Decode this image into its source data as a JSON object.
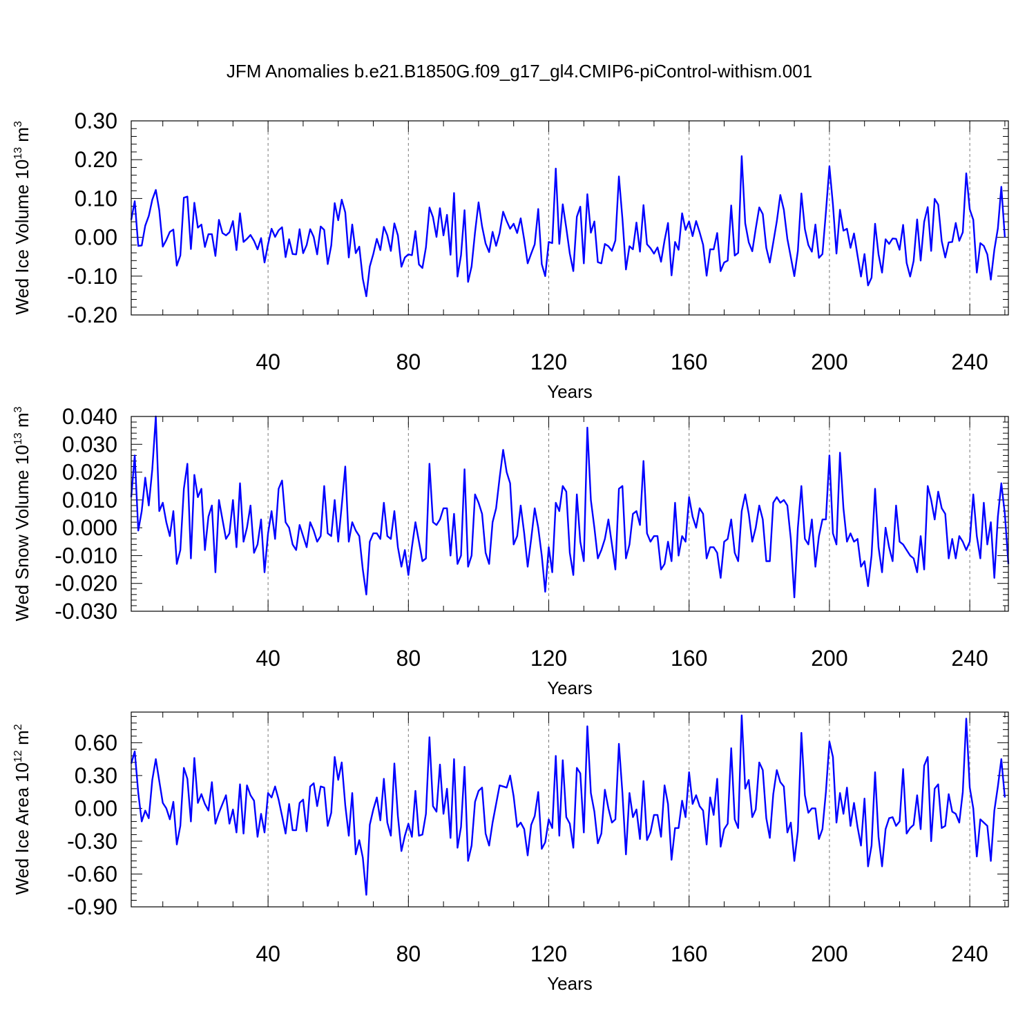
{
  "chart_data": {
    "title": "JFM Anomalies b.e21.B1850G.f09_g17_gl4.CMIP6-piControl-withism.001",
    "panels": [
      {
        "type": "line",
        "id": "ice-volume",
        "ylabel_main": "Wed Ice Volume 10",
        "ylabel_exp": "13",
        "ylabel_unit": " m",
        "ylabel_unit_exp": "3",
        "xlabel": "Years",
        "xlim": [
          1,
          251
        ],
        "ylim": [
          -0.2,
          0.3
        ],
        "yticks": [
          -0.2,
          -0.1,
          0.0,
          0.1,
          0.2,
          0.3
        ],
        "ytick_labels": [
          "-0.20",
          "-0.10",
          "0.00",
          "0.10",
          "0.20",
          "0.30"
        ],
        "xticks": [
          40,
          80,
          120,
          160,
          200,
          240
        ],
        "xtick_labels": [
          "40",
          "80",
          "120",
          "160",
          "200",
          "240"
        ],
        "grid_x": true,
        "series": [
          {
            "name": "Wed Ice Volume",
            "color": "#0000ff",
            "values": [
              0.045,
              0.093,
              -0.022,
              -0.021,
              0.03,
              0.055,
              0.097,
              0.122,
              0.07,
              -0.024,
              -0.007,
              0.014,
              0.02,
              -0.073,
              -0.047,
              0.102,
              0.105,
              -0.03,
              0.089,
              0.025,
              0.033,
              -0.025,
              0.008,
              0.008,
              -0.048,
              0.045,
              0.011,
              0.005,
              0.013,
              0.042,
              -0.033,
              0.062,
              -0.012,
              -0.004,
              0.006,
              -0.009,
              -0.031,
              -0.002,
              -0.065,
              -0.018,
              0.022,
              0.001,
              0.018,
              0.026,
              -0.051,
              -0.005,
              -0.043,
              -0.044,
              0.021,
              -0.041,
              -0.02,
              0.021,
              0.001,
              -0.044,
              0.028,
              0.019,
              -0.069,
              -0.021,
              0.088,
              0.044,
              0.097,
              0.064,
              -0.052,
              0.033,
              -0.041,
              -0.024,
              -0.107,
              -0.152,
              -0.075,
              -0.043,
              -0.004,
              -0.033,
              0.027,
              0.005,
              -0.035,
              0.036,
              0.005,
              -0.076,
              -0.052,
              -0.044,
              -0.046,
              0.016,
              -0.07,
              -0.079,
              -0.026,
              0.077,
              0.052,
              0.001,
              0.075,
              0.005,
              0.058,
              -0.045,
              0.114,
              -0.101,
              -0.046,
              0.07,
              -0.115,
              -0.075,
              0.013,
              0.09,
              0.028,
              -0.016,
              -0.038,
              0.014,
              -0.022,
              0.011,
              0.066,
              0.042,
              0.022,
              0.035,
              0.011,
              0.049,
              -0.006,
              -0.067,
              -0.042,
              -0.018,
              0.073,
              -0.069,
              -0.1,
              -0.012,
              -0.015,
              0.177,
              -0.017,
              0.085,
              0.024,
              -0.042,
              -0.087,
              0.053,
              0.079,
              -0.067,
              0.111,
              0.012,
              0.041,
              -0.064,
              -0.067,
              -0.017,
              -0.023,
              -0.035,
              -0.008,
              0.157,
              0.048,
              -0.083,
              -0.023,
              -0.031,
              0.038,
              -0.037,
              0.083,
              -0.018,
              -0.028,
              -0.042,
              -0.026,
              -0.063,
              -0.008,
              0.037,
              -0.098,
              -0.012,
              -0.032,
              0.062,
              0.019,
              0.041,
              0.003,
              0.042,
              0.013,
              -0.019,
              -0.099,
              -0.031,
              -0.031,
              0.011,
              -0.087,
              -0.065,
              -0.06,
              0.082,
              -0.047,
              -0.04,
              0.209,
              0.036,
              -0.013,
              -0.036,
              0.022,
              0.077,
              0.06,
              -0.027,
              -0.065,
              -0.013,
              0.041,
              0.109,
              0.071,
              -0.004,
              -0.051,
              -0.1,
              -0.035,
              0.113,
              0.021,
              -0.02,
              -0.037,
              0.033,
              -0.053,
              -0.043,
              0.065,
              0.183,
              0.084,
              -0.042,
              0.071,
              0.017,
              0.022,
              -0.027,
              0.01,
              -0.047,
              -0.101,
              -0.043,
              -0.124,
              -0.104,
              0.035,
              -0.044,
              -0.091,
              -0.005,
              -0.017,
              -0.003,
              -0.004,
              -0.032,
              0.032,
              -0.066,
              -0.101,
              -0.061,
              0.046,
              -0.06,
              0.04,
              0.078,
              -0.035,
              0.099,
              0.084,
              -0.01,
              -0.052,
              -0.013,
              -0.012,
              0.037,
              -0.009,
              0.013,
              0.165,
              0.072,
              0.045,
              -0.091,
              -0.015,
              -0.022,
              -0.044,
              -0.109,
              -0.032,
              0.023,
              0.13,
              0.0
            ]
          }
        ]
      },
      {
        "type": "line",
        "id": "snow-volume",
        "ylabel_main": "Wed Snow Volume 10",
        "ylabel_exp": "13",
        "ylabel_unit": " m",
        "ylabel_unit_exp": "3",
        "xlabel": "Years",
        "xlim": [
          1,
          251
        ],
        "ylim": [
          -0.03,
          0.04
        ],
        "yticks": [
          -0.03,
          -0.02,
          -0.01,
          0.0,
          0.01,
          0.02,
          0.03,
          0.04
        ],
        "ytick_labels": [
          "-0.030",
          "-0.020",
          "-0.010",
          "0.000",
          "0.010",
          "0.020",
          "0.030",
          "0.040"
        ],
        "xticks": [
          40,
          80,
          120,
          160,
          200,
          240
        ],
        "xtick_labels": [
          "40",
          "80",
          "120",
          "160",
          "200",
          "240"
        ],
        "grid_x": true,
        "series": [
          {
            "name": "Wed Snow Volume",
            "color": "#0000ff",
            "values": [
              0.011,
              0.026,
              -0.001,
              0.006,
              0.018,
              0.008,
              0.021,
              0.04,
              0.006,
              0.009,
              0.002,
              -0.003,
              0.006,
              -0.013,
              -0.008,
              0.014,
              0.023,
              -0.011,
              0.019,
              0.011,
              0.014,
              -0.008,
              0.004,
              0.008,
              -0.016,
              0.01,
              0.003,
              -0.004,
              -0.002,
              0.01,
              -0.007,
              0.016,
              -0.005,
              0.0,
              0.008,
              -0.009,
              -0.006,
              0.003,
              -0.016,
              -0.002,
              0.006,
              -0.004,
              0.014,
              0.017,
              0.002,
              0.0,
              -0.006,
              -0.008,
              0.001,
              -0.003,
              -0.007,
              0.002,
              -0.001,
              -0.005,
              -0.003,
              0.015,
              -0.002,
              -0.003,
              0.01,
              -0.005,
              0.008,
              0.022,
              -0.005,
              0.002,
              -0.001,
              -0.003,
              -0.015,
              -0.024,
              -0.005,
              -0.002,
              -0.002,
              -0.004,
              0.009,
              -0.003,
              -0.004,
              0.006,
              -0.007,
              -0.014,
              -0.008,
              -0.017,
              -0.007,
              0.002,
              -0.005,
              -0.012,
              -0.011,
              0.023,
              0.002,
              0.001,
              0.003,
              0.007,
              0.007,
              -0.01,
              0.005,
              -0.013,
              -0.01,
              0.021,
              -0.014,
              -0.01,
              0.012,
              0.009,
              0.005,
              -0.009,
              -0.013,
              0.002,
              0.007,
              0.018,
              0.028,
              0.02,
              0.016,
              -0.006,
              -0.003,
              0.008,
              -0.002,
              -0.014,
              -0.004,
              0.007,
              0.0,
              -0.01,
              -0.023,
              -0.007,
              -0.016,
              0.009,
              0.006,
              0.015,
              0.013,
              -0.009,
              -0.017,
              0.012,
              -0.005,
              -0.012,
              0.036,
              0.01,
              0.0,
              -0.011,
              -0.008,
              -0.004,
              0.003,
              -0.006,
              -0.015,
              0.014,
              0.015,
              -0.011,
              -0.006,
              0.005,
              0.006,
              0.001,
              0.024,
              -0.002,
              -0.005,
              -0.003,
              -0.003,
              -0.015,
              -0.013,
              -0.005,
              -0.012,
              0.009,
              -0.01,
              -0.003,
              -0.005,
              0.011,
              0.004,
              0.0,
              0.007,
              0.005,
              -0.011,
              -0.007,
              -0.007,
              -0.009,
              -0.018,
              -0.005,
              -0.004,
              0.003,
              -0.009,
              -0.012,
              0.006,
              0.012,
              0.005,
              -0.005,
              0.0,
              0.008,
              0.003,
              -0.012,
              -0.012,
              0.009,
              0.011,
              0.009,
              0.01,
              0.008,
              -0.004,
              -0.025,
              0.0,
              0.015,
              -0.004,
              -0.006,
              0.003,
              -0.014,
              -0.003,
              0.003,
              0.003,
              0.026,
              -0.002,
              -0.006,
              0.027,
              0.007,
              -0.005,
              -0.002,
              -0.005,
              -0.004,
              -0.014,
              -0.012,
              -0.021,
              -0.01,
              0.014,
              -0.007,
              -0.016,
              0.0,
              -0.007,
              -0.012,
              0.008,
              -0.005,
              -0.006,
              -0.008,
              -0.01,
              -0.011,
              -0.016,
              -0.003,
              -0.015,
              0.015,
              0.01,
              0.003,
              0.013,
              0.007,
              0.005,
              -0.011,
              -0.004,
              -0.011,
              -0.003,
              -0.005,
              -0.008,
              -0.005,
              0.012,
              -0.003,
              -0.011,
              0.009,
              -0.006,
              0.002,
              -0.018,
              0.004,
              0.016,
              0.005,
              -0.013
            ]
          }
        ]
      },
      {
        "type": "line",
        "id": "ice-area",
        "ylabel_main": "Wed Ice Area 10",
        "ylabel_exp": "12",
        "ylabel_unit": " m",
        "ylabel_unit_exp": "2",
        "xlabel": "Years",
        "xlim": [
          1,
          251
        ],
        "ylim": [
          -0.9,
          0.88
        ],
        "yticks": [
          -0.9,
          -0.6,
          -0.3,
          0.0,
          0.3,
          0.6
        ],
        "ytick_labels": [
          "-0.90",
          "-0.60",
          "-0.30",
          "0.00",
          "0.30",
          "0.60"
        ],
        "xticks": [
          40,
          80,
          120,
          160,
          200,
          240
        ],
        "xtick_labels": [
          "40",
          "80",
          "120",
          "160",
          "200",
          "240"
        ],
        "grid_x": true,
        "series": [
          {
            "name": "Wed Ice Area",
            "color": "#0000ff",
            "values": [
              0.41,
              0.52,
              0.14,
              -0.12,
              -0.02,
              -0.09,
              0.26,
              0.45,
              0.25,
              0.05,
              0.0,
              -0.1,
              0.06,
              -0.33,
              -0.16,
              0.37,
              0.27,
              -0.12,
              0.46,
              0.05,
              0.13,
              0.04,
              -0.02,
              0.24,
              -0.14,
              -0.04,
              0.04,
              0.12,
              -0.14,
              -0.01,
              -0.22,
              0.22,
              -0.23,
              0.21,
              0.12,
              0.07,
              -0.26,
              -0.05,
              -0.22,
              0.14,
              0.1,
              0.2,
              0.08,
              -0.07,
              -0.23,
              0.04,
              -0.2,
              -0.2,
              0.05,
              0.08,
              -0.21,
              0.2,
              0.23,
              0.02,
              0.2,
              0.19,
              -0.16,
              -0.04,
              0.47,
              0.26,
              0.42,
              0.03,
              -0.25,
              0.14,
              -0.42,
              -0.29,
              -0.45,
              -0.79,
              -0.15,
              -0.01,
              0.1,
              -0.11,
              0.27,
              -0.13,
              -0.25,
              0.41,
              -0.07,
              -0.39,
              -0.25,
              -0.14,
              -0.26,
              0.16,
              -0.25,
              -0.24,
              -0.05,
              0.65,
              0.02,
              -0.03,
              0.4,
              -0.05,
              0.18,
              -0.27,
              0.45,
              -0.36,
              -0.17,
              0.38,
              -0.48,
              -0.34,
              0.06,
              0.16,
              0.19,
              -0.23,
              -0.34,
              -0.13,
              0.04,
              0.21,
              0.2,
              0.19,
              0.3,
              0.11,
              -0.17,
              -0.13,
              -0.19,
              -0.43,
              -0.15,
              -0.07,
              0.15,
              -0.37,
              -0.31,
              -0.1,
              -0.18,
              0.48,
              -0.25,
              0.44,
              -0.08,
              -0.14,
              -0.36,
              0.37,
              0.32,
              -0.22,
              0.75,
              0.14,
              -0.03,
              -0.32,
              -0.23,
              0.17,
              0.0,
              -0.13,
              -0.1,
              0.59,
              0.14,
              -0.42,
              0.14,
              -0.08,
              -0.01,
              -0.28,
              0.25,
              -0.29,
              -0.22,
              -0.06,
              -0.06,
              -0.26,
              0.21,
              0.04,
              -0.47,
              -0.18,
              -0.18,
              0.07,
              -0.08,
              0.33,
              0.04,
              0.12,
              0.02,
              -0.02,
              -0.33,
              0.1,
              -0.06,
              0.27,
              -0.35,
              -0.19,
              -0.14,
              0.55,
              -0.1,
              -0.18,
              0.85,
              0.18,
              0.26,
              -0.08,
              -0.01,
              0.42,
              0.35,
              -0.09,
              -0.27,
              0.13,
              0.35,
              0.24,
              0.2,
              -0.22,
              -0.13,
              -0.48,
              -0.21,
              0.69,
              0.12,
              -0.04,
              0.0,
              0.0,
              -0.28,
              -0.19,
              0.15,
              0.61,
              0.47,
              -0.13,
              0.14,
              -0.05,
              0.19,
              -0.16,
              0.05,
              -0.17,
              -0.34,
              0.09,
              -0.53,
              -0.34,
              0.33,
              -0.26,
              -0.53,
              -0.19,
              -0.09,
              -0.08,
              -0.16,
              -0.12,
              0.36,
              -0.23,
              -0.18,
              -0.15,
              0.12,
              -0.19,
              0.39,
              0.47,
              -0.3,
              0.18,
              0.22,
              -0.18,
              -0.16,
              0.13,
              -0.03,
              -0.05,
              -0.13,
              0.15,
              0.82,
              0.19,
              0.0,
              -0.44,
              -0.1,
              -0.13,
              -0.16,
              -0.48,
              -0.02,
              0.2,
              0.45,
              0.1
            ]
          }
        ]
      }
    ]
  }
}
